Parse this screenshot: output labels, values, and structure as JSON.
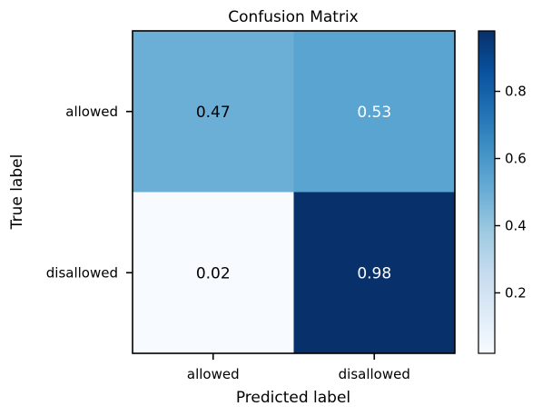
{
  "chart_data": {
    "type": "heatmap",
    "title": "Confusion Matrix",
    "xlabel": "Predicted label",
    "ylabel": "True label",
    "x_categories": [
      "allowed",
      "disallowed"
    ],
    "y_categories": [
      "allowed",
      "disallowed"
    ],
    "values": [
      [
        0.47,
        0.53
      ],
      [
        0.02,
        0.98
      ]
    ],
    "value_labels": [
      [
        "0.47",
        "0.53"
      ],
      [
        "0.02",
        "0.98"
      ]
    ],
    "colormap": "Blues",
    "colorbar": {
      "range": [
        0.02,
        0.98
      ],
      "ticks": [
        0.2,
        0.4,
        0.6,
        0.8
      ],
      "tick_labels": [
        "0.2",
        "0.4",
        "0.6",
        "0.8"
      ]
    },
    "grid": false,
    "cell_colors": [
      [
        "#6baed6",
        "#5aa4d2"
      ],
      [
        "#f7fbff",
        "#08306b"
      ]
    ],
    "text_colors": [
      [
        "#000000",
        "#ffffff"
      ],
      [
        "#000000",
        "#ffffff"
      ]
    ]
  }
}
